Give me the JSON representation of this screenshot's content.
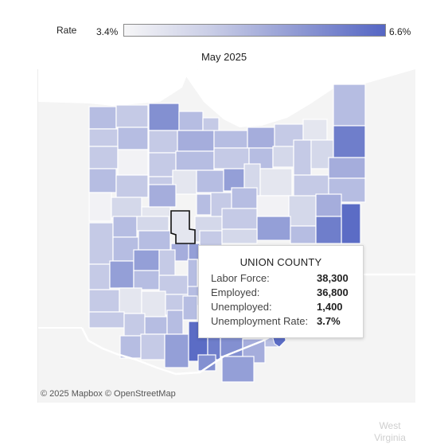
{
  "legend": {
    "title": "Rate",
    "min_label": "3.4%",
    "max_label": "6.6%",
    "min_color": "#f6f6f7",
    "max_color": "#5566c4"
  },
  "map": {
    "title": "May 2025",
    "state": "Ohio",
    "neighbor_label_line1": "West",
    "neighbor_label_line2": "Virginia",
    "attribution": "© 2025 Mapbox  © OpenStreetMap",
    "highlighted_county": "Union"
  },
  "tooltip": {
    "title": "UNION COUNTY",
    "rows": [
      {
        "label": "Labor Force:",
        "value": "38,300"
      },
      {
        "label": "Employed:",
        "value": "36,800"
      },
      {
        "label": "Unemployed:",
        "value": "1,400"
      },
      {
        "label": "Unemployment Rate:",
        "value": "3.7%"
      }
    ]
  },
  "colors": {
    "water": "#ffffff",
    "land_outside": "#f4f4f4",
    "county_border": "#ffffff",
    "highlight_border": "#111111"
  }
}
